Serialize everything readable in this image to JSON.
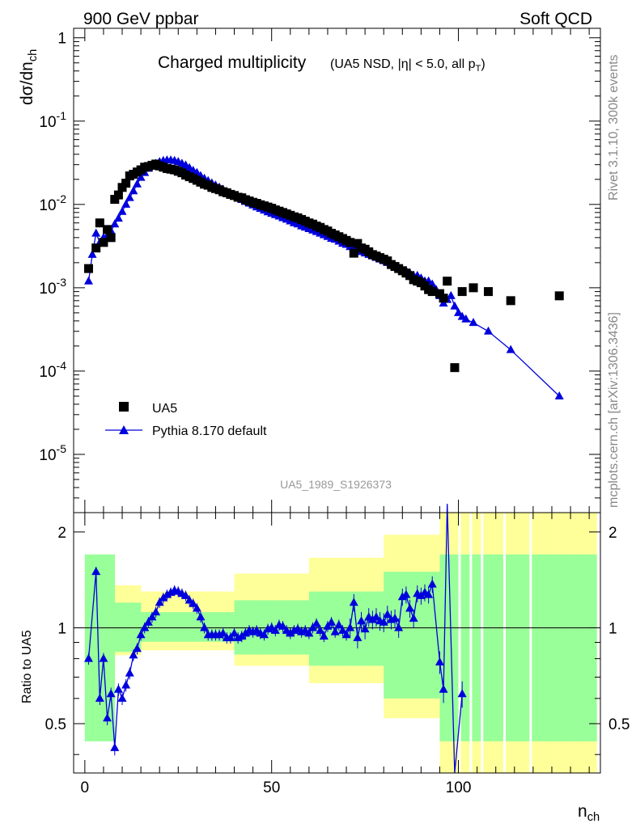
{
  "header": {
    "left": "900 GeV ppbar",
    "right": "Soft QCD"
  },
  "side": {
    "top": "Rivet 3.1.10,  300k events",
    "bottom": "mcplots.cern.ch [arXiv:1306.3436]"
  },
  "chart_data": [
    {
      "type": "scatter",
      "title": "Charged multiplicity",
      "subtitle": "(UA5 NSD, |η| < 5.0, all p_T)",
      "ylabel": "dσ/dn_ch",
      "watermark": "UA5_1989_S1926373",
      "xlim": [
        -3,
        138
      ],
      "ylim": [
        2e-06,
        1.3
      ],
      "log_y": true,
      "ytick_labels": [
        "1",
        "10^-1",
        "10^-2",
        "10^-3",
        "10^-4",
        "10^-5"
      ],
      "legend_position": "lower-left",
      "series": [
        {
          "name": "UA5",
          "marker": "square",
          "color": "#000000",
          "x": [
            1,
            3,
            4,
            5,
            6,
            7,
            8,
            9,
            10,
            11,
            12,
            13,
            14,
            15,
            16,
            17,
            18,
            19,
            20,
            21,
            22,
            23,
            24,
            25,
            26,
            27,
            28,
            29,
            30,
            31,
            32,
            33,
            34,
            35,
            36,
            37,
            38,
            39,
            40,
            41,
            42,
            43,
            44,
            45,
            46,
            47,
            48,
            49,
            50,
            51,
            52,
            53,
            54,
            55,
            56,
            57,
            58,
            59,
            60,
            61,
            62,
            63,
            64,
            65,
            66,
            67,
            68,
            69,
            70,
            71,
            72,
            73,
            74,
            75,
            76,
            77,
            78,
            79,
            80,
            81,
            82,
            83,
            84,
            85,
            86,
            87,
            88,
            89,
            90,
            91,
            92,
            93,
            95,
            96,
            97,
            99,
            101,
            104,
            108,
            114,
            127
          ],
          "y": [
            0.0017,
            0.003,
            0.006,
            0.0035,
            0.005,
            0.004,
            0.0115,
            0.013,
            0.016,
            0.018,
            0.022,
            0.023,
            0.0245,
            0.026,
            0.028,
            0.0285,
            0.0295,
            0.0305,
            0.029,
            0.028,
            0.027,
            0.0265,
            0.026,
            0.025,
            0.024,
            0.0225,
            0.0215,
            0.0205,
            0.0195,
            0.0185,
            0.0175,
            0.017,
            0.016,
            0.0155,
            0.015,
            0.0142,
            0.0138,
            0.0132,
            0.0128,
            0.0122,
            0.012,
            0.0114,
            0.011,
            0.0106,
            0.0103,
            0.0099,
            0.0096,
            0.0093,
            0.009,
            0.0086,
            0.0083,
            0.008,
            0.0077,
            0.0074,
            0.0071,
            0.0069,
            0.0066,
            0.0063,
            0.006,
            0.0058,
            0.0055,
            0.0053,
            0.005,
            0.0048,
            0.0045,
            0.0043,
            0.0041,
            0.0039,
            0.0037,
            0.0035,
            0.0026,
            0.0034,
            0.003,
            0.0029,
            0.0027,
            0.0025,
            0.0024,
            0.0023,
            0.0022,
            0.0021,
            0.0019,
            0.0018,
            0.0017,
            0.0016,
            0.0015,
            0.0014,
            0.00125,
            0.0012,
            0.00115,
            0.00105,
            0.00095,
            0.0009,
            0.00085,
            0.00075,
            0.0012,
            0.00011,
            0.0009,
            0.001,
            0.0009,
            0.0007,
            0.0008
          ]
        },
        {
          "name": "Pythia 8.170 default",
          "marker": "triangle",
          "color": "#0000dd",
          "x": [
            1,
            2,
            3,
            4,
            5,
            6,
            7,
            8,
            9,
            10,
            11,
            12,
            13,
            14,
            15,
            16,
            17,
            18,
            19,
            20,
            21,
            22,
            23,
            24,
            25,
            26,
            27,
            28,
            29,
            30,
            31,
            32,
            33,
            34,
            35,
            36,
            37,
            38,
            39,
            40,
            41,
            42,
            43,
            44,
            45,
            46,
            47,
            48,
            49,
            50,
            51,
            52,
            53,
            54,
            55,
            56,
            57,
            58,
            59,
            60,
            61,
            62,
            63,
            64,
            65,
            66,
            67,
            68,
            69,
            70,
            71,
            72,
            73,
            74,
            75,
            76,
            77,
            78,
            79,
            80,
            81,
            82,
            83,
            84,
            85,
            86,
            87,
            88,
            89,
            90,
            91,
            92,
            93,
            94,
            95,
            96,
            97,
            98,
            99,
            100,
            101,
            102,
            104,
            108,
            114,
            127
          ],
          "y": [
            0.0012,
            0.0025,
            0.0045,
            0.0035,
            0.004,
            0.0042,
            0.0048,
            0.0058,
            0.0068,
            0.0082,
            0.01,
            0.012,
            0.0145,
            0.0175,
            0.021,
            0.024,
            0.027,
            0.029,
            0.031,
            0.0325,
            0.0335,
            0.034,
            0.034,
            0.0335,
            0.0325,
            0.031,
            0.0295,
            0.0275,
            0.0255,
            0.024,
            0.022,
            0.0205,
            0.0192,
            0.018,
            0.017,
            0.016,
            0.0151,
            0.0142,
            0.0134,
            0.0127,
            0.012,
            0.0114,
            0.0108,
            0.0103,
            0.0098,
            0.0093,
            0.0089,
            0.0085,
            0.0081,
            0.0078,
            0.0075,
            0.0072,
            0.0069,
            0.0066,
            0.0063,
            0.006,
            0.0058,
            0.0055,
            0.0053,
            0.0051,
            0.0049,
            0.0047,
            0.0045,
            0.0043,
            0.0041,
            0.0039,
            0.0038,
            0.0036,
            0.0034,
            0.0033,
            0.0031,
            0.003,
            0.0028,
            0.0027,
            0.0026,
            0.0025,
            0.0024,
            0.0023,
            0.0022,
            0.0021,
            0.002,
            0.0019,
            0.0018,
            0.0017,
            0.0016,
            0.0016,
            0.0015,
            0.0014,
            0.0014,
            0.0013,
            0.0012,
            0.0012,
            0.0011,
            0.00095,
            0.0008,
            0.00065,
            0.00072,
            0.0008,
            0.0006,
            0.0005,
            0.00045,
            0.00042,
            0.00038,
            0.0003,
            0.00018,
            5e-05
          ]
        }
      ]
    },
    {
      "type": "line",
      "ylabel": "Ratio to UA5",
      "xlabel": "n_ch",
      "xlim": [
        -3,
        138
      ],
      "ylim": [
        0.35,
        2.3
      ],
      "xtick_labels": [
        "0",
        "50",
        "100"
      ],
      "ytick_labels": [
        "0.5",
        "1",
        "2"
      ],
      "reference_line": 1,
      "band_colors": {
        "inner": "#99ff99",
        "outer": "#ffff99"
      },
      "series": [
        {
          "name": "Pythia 8.170 default",
          "color": "#0000dd",
          "x": [
            1,
            3,
            4,
            5,
            6,
            7,
            8,
            9,
            10,
            11,
            12,
            13,
            14,
            15,
            16,
            17,
            18,
            19,
            20,
            21,
            22,
            23,
            24,
            25,
            26,
            27,
            28,
            29,
            30,
            31,
            32,
            33,
            34,
            35,
            36,
            37,
            38,
            39,
            40,
            41,
            42,
            43,
            44,
            45,
            46,
            47,
            48,
            49,
            50,
            51,
            52,
            53,
            54,
            55,
            56,
            57,
            58,
            59,
            60,
            61,
            62,
            63,
            64,
            65,
            66,
            67,
            68,
            69,
            70,
            71,
            72,
            73,
            74,
            75,
            76,
            77,
            78,
            79,
            80,
            81,
            82,
            83,
            84,
            85,
            86,
            87,
            88,
            89,
            90,
            91,
            92,
            93,
            95,
            96,
            97,
            99,
            101
          ],
          "y": [
            0.8,
            1.5,
            0.6,
            0.8,
            0.52,
            0.62,
            0.42,
            0.64,
            0.6,
            0.66,
            0.72,
            0.82,
            0.86,
            0.95,
            1.0,
            1.04,
            1.08,
            1.12,
            1.2,
            1.24,
            1.27,
            1.29,
            1.31,
            1.3,
            1.28,
            1.26,
            1.22,
            1.19,
            1.15,
            1.08,
            1.0,
            0.95,
            0.95,
            0.95,
            0.95,
            0.96,
            0.93,
            0.93,
            0.96,
            0.93,
            0.94,
            0.96,
            0.98,
            0.97,
            0.98,
            0.96,
            0.95,
            0.99,
            1.0,
            0.98,
            1.02,
            1.01,
            0.98,
            0.96,
            0.98,
            0.99,
            0.97,
            0.98,
            0.96,
            1.0,
            1.03,
            0.98,
            0.94,
            1.01,
            1.04,
            0.97,
            1.02,
            0.98,
            0.95,
            1.0,
            1.2,
            0.93,
            1.05,
            0.99,
            1.08,
            1.06,
            1.08,
            1.05,
            1.04,
            1.1,
            1.06,
            1.07,
            1.0,
            1.25,
            1.27,
            1.15,
            1.07,
            1.28,
            1.26,
            1.29,
            1.27,
            1.37,
            0.78,
            0.64,
            3.0,
            0.25,
            0.62
          ]
        }
      ]
    }
  ]
}
